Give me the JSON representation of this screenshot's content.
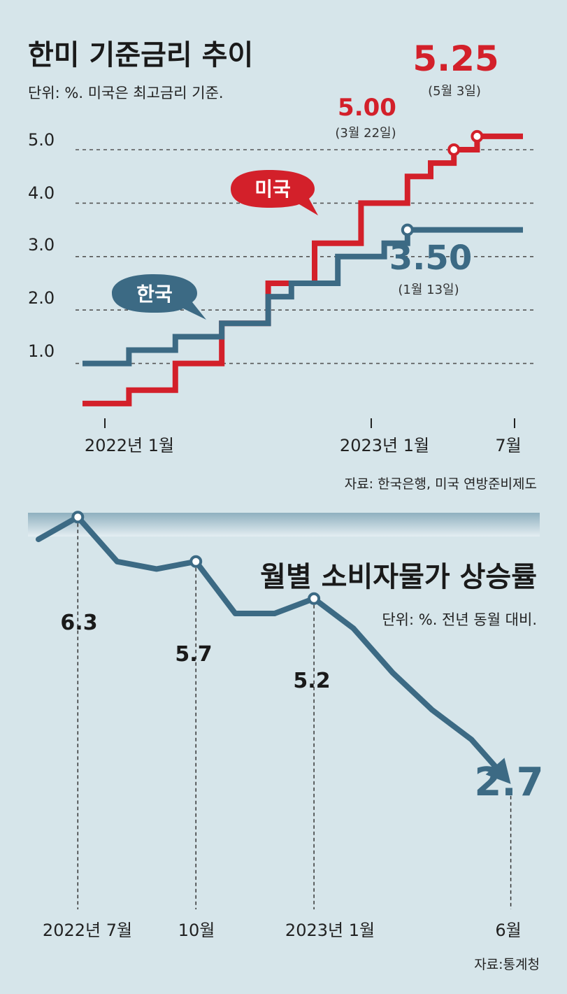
{
  "colors": {
    "us": "#d3202a",
    "korea": "#3c6a84",
    "grid": "#555555",
    "bg": "#d6e5ea"
  },
  "chart_data": [
    {
      "type": "line",
      "step": true,
      "title": "한미 기준금리 추이",
      "unit_note": "단위: %. 미국은 최고금리 기준.",
      "source": "자료: 한국은행, 미국 연방준비제도",
      "y_ticks": [
        "1.0",
        "2.0",
        "3.0",
        "4.0",
        "5.0"
      ],
      "ylim": [
        0.25,
        5.25
      ],
      "x_ticks": [
        "2022년 1월",
        "2023년 1월",
        "7월"
      ],
      "series": [
        {
          "name": "미국",
          "values": [
            0.25,
            0.25,
            0.5,
            0.5,
            1.0,
            1.0,
            1.75,
            1.75,
            2.5,
            2.5,
            3.25,
            3.25,
            4.0,
            4.0,
            4.5,
            4.75,
            5.0,
            5.25,
            5.25
          ],
          "annotations": [
            {
              "value": "5.00",
              "note": "(3월 22일)"
            },
            {
              "value": "5.25",
              "note": "(5월 3일)"
            }
          ]
        },
        {
          "name": "한국",
          "values": [
            1.0,
            1.0,
            1.25,
            1.25,
            1.5,
            1.5,
            1.75,
            1.75,
            2.25,
            2.5,
            2.5,
            3.0,
            3.0,
            3.25,
            3.5,
            3.5,
            3.5,
            3.5,
            3.5
          ],
          "annotations": [
            {
              "value": "3.50",
              "note": "(1월 13일)"
            }
          ]
        }
      ]
    },
    {
      "type": "line",
      "title": "월별 소비자물가 상승률",
      "unit_note": "단위: %. 전년 동월 대비.",
      "source": "자료:통계청",
      "x_ticks": [
        "2022년 7월",
        "10월",
        "2023년 1월",
        "6월"
      ],
      "ylim": [
        2.0,
        7.0
      ],
      "series": [
        {
          "name": "소비자물가 상승률",
          "values": [
            6.0,
            6.3,
            5.7,
            5.6,
            5.7,
            5.0,
            5.0,
            5.2,
            4.8,
            4.2,
            3.7,
            3.3,
            2.7
          ],
          "labels": [
            {
              "value": "6.3"
            },
            {
              "value": "5.7"
            },
            {
              "value": "5.2"
            },
            {
              "value": "2.7"
            }
          ]
        }
      ]
    }
  ]
}
